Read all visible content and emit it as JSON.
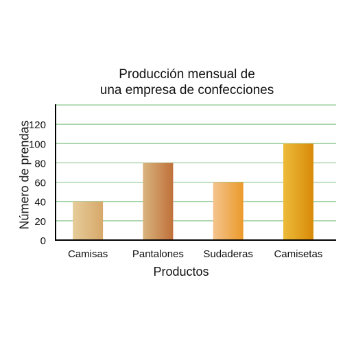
{
  "chart_data": {
    "type": "bar",
    "title": [
      "Producción mensual de",
      "una empresa  de confecciones"
    ],
    "xlabel": "Productos",
    "ylabel": "Número de prendas",
    "categories": [
      "Camisas",
      "Pantalones",
      "Sudaderas",
      "Camisetas"
    ],
    "values": [
      40,
      80,
      60,
      100
    ],
    "ylim": [
      0,
      140
    ],
    "yticks": [
      0,
      20,
      40,
      60,
      80,
      100,
      120
    ],
    "grid": true,
    "colors": {
      "grid": "#8cc68e",
      "axis": "#000000",
      "bars": [
        [
          "#e6cc9a",
          "#d7a86a"
        ],
        [
          "#d9b47e",
          "#c0703a"
        ],
        [
          "#f4c48e",
          "#eb9a2a"
        ],
        [
          "#edbb3a",
          "#d88a08"
        ]
      ]
    }
  }
}
